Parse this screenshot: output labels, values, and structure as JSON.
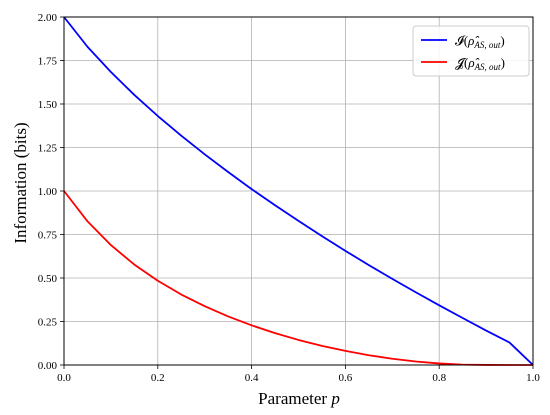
{
  "chart_data": {
    "type": "line",
    "xlabel_main": "Parameter",
    "xlabel_var": "p",
    "ylabel": "Information (bits)",
    "xlim": [
      0,
      1
    ],
    "ylim": [
      0,
      2
    ],
    "x_ticks": [
      0,
      0.2,
      0.4,
      0.6,
      0.8,
      1.0
    ],
    "x_tick_labels": [
      "0.0",
      "0.2",
      "0.4",
      "0.6",
      "0.8",
      "1.0"
    ],
    "y_ticks": [
      0,
      0.25,
      0.5,
      0.75,
      1.0,
      1.25,
      1.5,
      1.75,
      2.0
    ],
    "y_tick_labels": [
      "0.00",
      "0.25",
      "0.50",
      "0.75",
      "1.00",
      "1.25",
      "1.50",
      "1.75",
      "2.00"
    ],
    "grid": true,
    "legend_position": "top-right",
    "series": [
      {
        "name": "𝓘(ρ̂AS, out)",
        "legend_base": "𝓘(",
        "legend_rho": "ρ̂",
        "legend_sub": "AS, out",
        "legend_close": ")",
        "color": "#0000ff",
        "x": [
          0,
          0.05,
          0.1,
          0.15,
          0.2,
          0.25,
          0.3,
          0.35,
          0.4,
          0.45,
          0.5,
          0.55,
          0.6,
          0.65,
          0.7,
          0.75,
          0.8,
          0.85,
          0.9,
          0.95,
          1.0
        ],
        "y": [
          2.0,
          1.829,
          1.684,
          1.552,
          1.431,
          1.318,
          1.211,
          1.109,
          1.011,
          0.918,
          0.828,
          0.741,
          0.656,
          0.574,
          0.495,
          0.418,
          0.343,
          0.27,
          0.198,
          0.129,
          0.0
        ]
      },
      {
        "name": "𝓙(ρ̂AS, out)",
        "legend_base": "𝓙(",
        "legend_rho": "ρ̂",
        "legend_sub": "AS, out",
        "legend_close": ")",
        "color": "#ff0000",
        "x": [
          0,
          0.05,
          0.1,
          0.15,
          0.2,
          0.25,
          0.3,
          0.35,
          0.4,
          0.45,
          0.5,
          0.55,
          0.6,
          0.65,
          0.7,
          0.75,
          0.8,
          0.85,
          0.9,
          0.95,
          1.0
        ],
        "y": [
          1.0,
          0.826,
          0.689,
          0.577,
          0.484,
          0.405,
          0.338,
          0.279,
          0.228,
          0.183,
          0.144,
          0.11,
          0.081,
          0.056,
          0.036,
          0.02,
          0.009,
          0.002,
          0.0003,
          0.0,
          0.0
        ]
      }
    ]
  }
}
